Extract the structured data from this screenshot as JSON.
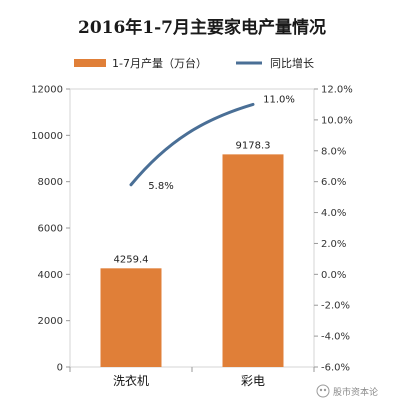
{
  "chart_data": {
    "type": "bar",
    "title": "2016年1-7月主要家电产量情况",
    "categories": [
      "洗衣机",
      "彩电"
    ],
    "series": [
      {
        "name": "1-7月产量（万台）",
        "type": "bar",
        "axis": "left",
        "values": [
          4259.4,
          9178.3
        ],
        "color": "#E07F38"
      },
      {
        "name": "同比增长",
        "type": "line",
        "axis": "right",
        "values": [
          5.8,
          11.0
        ],
        "color": "#4A6F96"
      }
    ],
    "data_labels": {
      "bars": [
        "4259.4",
        "9178.3"
      ],
      "line": [
        "5.8%",
        "11.0%"
      ]
    },
    "ylim_left": [
      0,
      12000
    ],
    "yticks_left": [
      "0",
      "2000",
      "4000",
      "6000",
      "8000",
      "10000",
      "12000"
    ],
    "ylim_right": [
      -6,
      12
    ],
    "yticks_right": [
      "-6.0%",
      "-4.0%",
      "-2.0%",
      "0.0%",
      "2.0%",
      "4.0%",
      "6.0%",
      "8.0%",
      "10.0%",
      "12.0%"
    ],
    "legend_position": "top",
    "grid": false
  },
  "watermark": "股市资本论"
}
